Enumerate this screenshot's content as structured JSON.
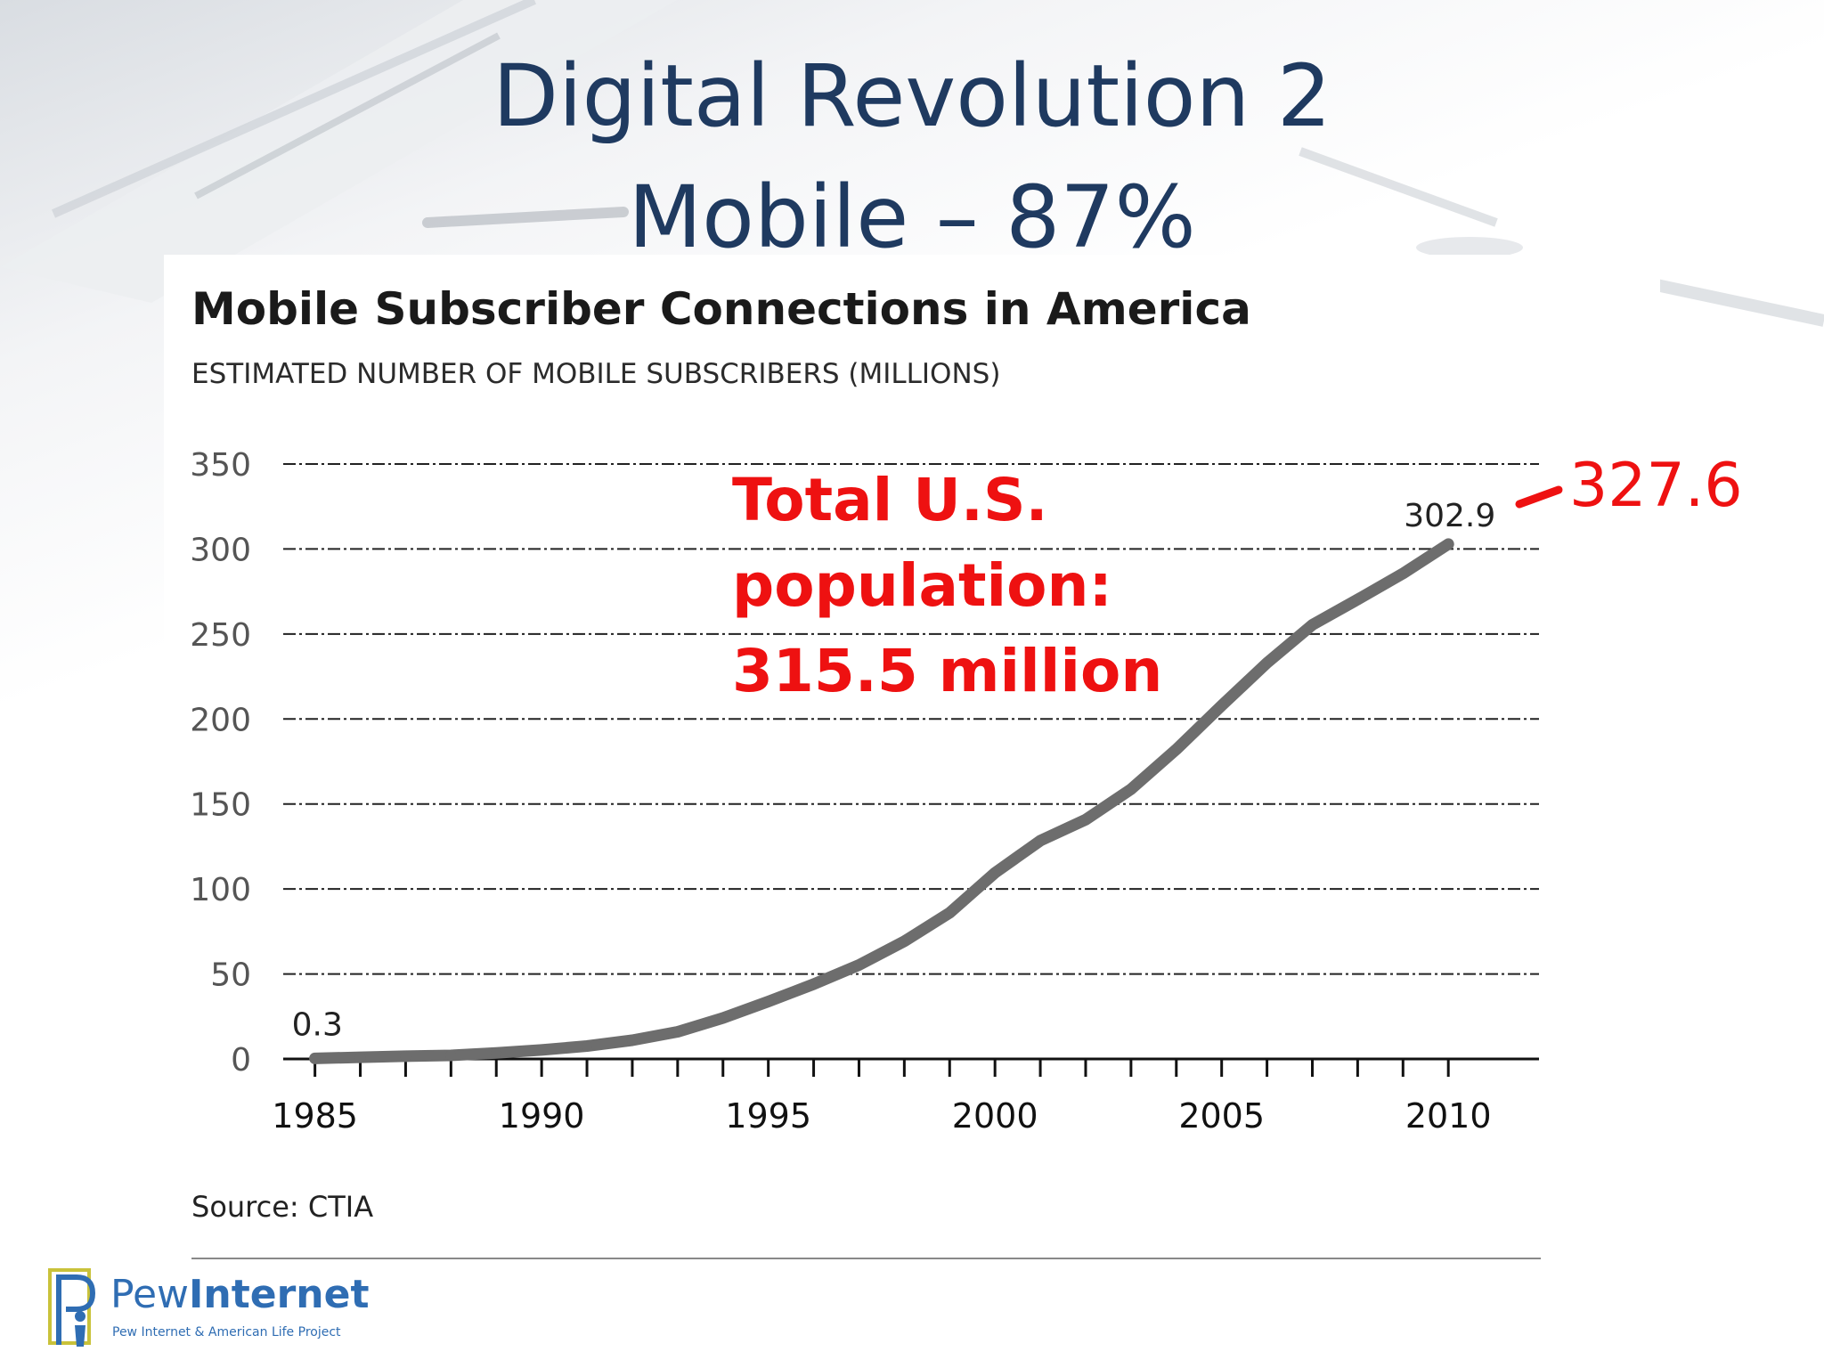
{
  "slide": {
    "title_line1": "Digital Revolution 2",
    "title_line2": "Mobile – 87%"
  },
  "chart_data": {
    "type": "line",
    "title": "Mobile Subscriber Connections in America",
    "subtitle": "ESTIMATED NUMBER OF MOBILE SUBSCRIBERS (MILLIONS)",
    "xlabel": "",
    "ylabel": "",
    "xlim": [
      1984.3,
      2012
    ],
    "ylim": [
      0,
      350
    ],
    "y_ticks": [
      0,
      50,
      100,
      150,
      200,
      250,
      300,
      350
    ],
    "x_tick_labels": [
      1985,
      1990,
      1995,
      2000,
      2005,
      2010
    ],
    "x_minor_ticks": [
      1985,
      1986,
      1987,
      1988,
      1989,
      1990,
      1991,
      1992,
      1993,
      1994,
      1995,
      1996,
      1997,
      1998,
      1999,
      2000,
      2001,
      2002,
      2003,
      2004,
      2005,
      2006,
      2007,
      2008,
      2009,
      2010
    ],
    "grid": true,
    "series": [
      {
        "x": [
          1985,
          1986,
          1987,
          1988,
          1989,
          1990,
          1991,
          1992,
          1993,
          1994,
          1995,
          1996,
          1997,
          1998,
          1999,
          2000,
          2001,
          2002,
          2003,
          2004,
          2005,
          2006,
          2007,
          2008,
          2009,
          2010
        ],
        "values": [
          0.3,
          1.0,
          1.6,
          2.1,
          3.5,
          5.3,
          7.6,
          11.0,
          16.0,
          24.1,
          33.8,
          44.0,
          55.3,
          69.2,
          86.0,
          109.5,
          128.4,
          140.8,
          158.7,
          182.1,
          207.9,
          233.0,
          255.4,
          270.3,
          285.6,
          302.9
        ],
        "color": "#6d6d6d"
      }
    ],
    "data_labels": [
      {
        "x": 1985,
        "text": "0.3"
      },
      {
        "x": 2010,
        "text": "302.9"
      }
    ]
  },
  "annotations": {
    "callout_line1": "Total U.S.",
    "callout_line2": "population:",
    "callout_line3": "315.5 million",
    "extra_value": "327.6",
    "color": "#ee1111"
  },
  "source": "Source: CTIA",
  "logo": {
    "word_part1": "Pew",
    "word_part2": "Internet",
    "tagline": "Pew Internet & American Life Project",
    "color": "#2f6db3"
  }
}
